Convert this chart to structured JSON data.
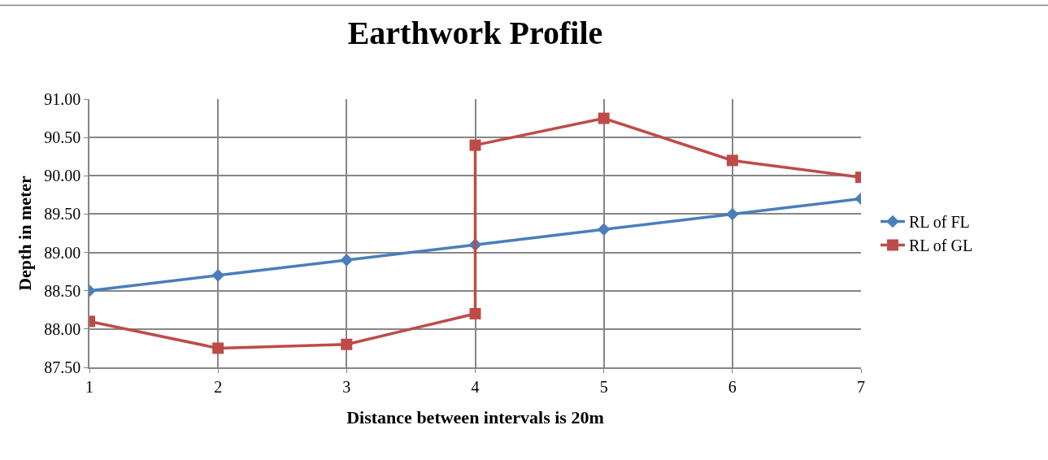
{
  "chart_data": {
    "type": "line",
    "title": "Earthwork Profile",
    "xlabel": "Distance between intervals is 20m",
    "ylabel": "Depth in meter",
    "series": [
      {
        "name": "RL of FL",
        "color": "#4a7ebb",
        "marker": "diamond",
        "x": [
          1,
          2,
          3,
          4,
          5,
          6,
          7
        ],
        "values": [
          88.5,
          88.7,
          88.9,
          89.1,
          89.3,
          89.5,
          89.7
        ]
      },
      {
        "name": "RL of GL",
        "color": "#be4b48",
        "marker": "square",
        "x": [
          1,
          2,
          3,
          4,
          4,
          5,
          6,
          7
        ],
        "values": [
          88.1,
          87.75,
          87.8,
          88.2,
          90.4,
          90.75,
          90.2,
          89.98
        ]
      }
    ],
    "xlim": [
      1,
      7
    ],
    "xticks": [
      1,
      2,
      3,
      4,
      5,
      6,
      7
    ],
    "ylim": [
      87.5,
      91
    ],
    "yticks": [
      {
        "value": 87.5,
        "label": "87.50"
      },
      {
        "value": 88,
        "label": "88.00"
      },
      {
        "value": 88.5,
        "label": "88.50"
      },
      {
        "value": 89,
        "label": "89.00"
      },
      {
        "value": 89.5,
        "label": "89.50"
      },
      {
        "value": 90,
        "label": "90.00"
      },
      {
        "value": 90.5,
        "label": "90.50"
      },
      {
        "value": 91,
        "label": "91.00"
      }
    ],
    "grid": true,
    "legend": "right",
    "line_style": "solid"
  }
}
